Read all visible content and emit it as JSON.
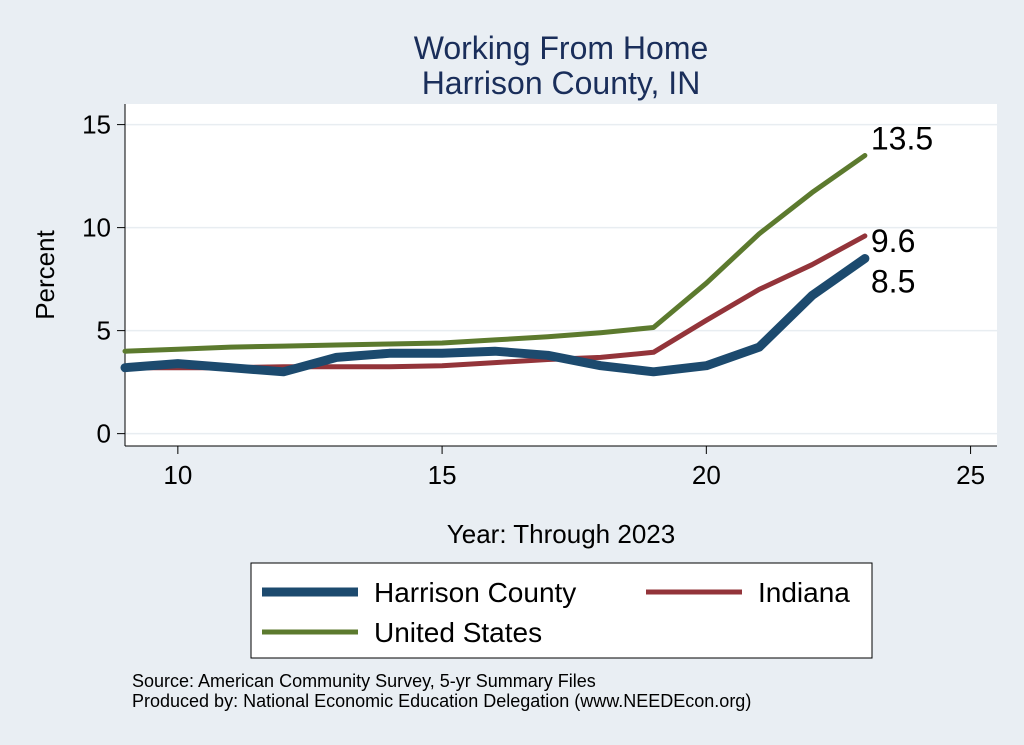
{
  "chart_data": {
    "type": "line",
    "title": "Working From Home",
    "subtitle": "Harrison County, IN",
    "xlabel": "Year: Through 2023",
    "ylabel": "Percent",
    "xlim": [
      9,
      25.5
    ],
    "ylim": [
      -0.6,
      16
    ],
    "xticks": [
      10,
      15,
      20,
      25
    ],
    "yticks": [
      0,
      5,
      10,
      15
    ],
    "grid": true,
    "legend_position": "bottom",
    "x": [
      9,
      10,
      11,
      12,
      13,
      14,
      15,
      16,
      17,
      18,
      19,
      20,
      21,
      22,
      23
    ],
    "series": [
      {
        "name": "Harrison County",
        "color": "#1c4a6e",
        "values": [
          3.2,
          3.4,
          3.2,
          3.0,
          3.7,
          3.9,
          3.9,
          4.0,
          3.8,
          3.3,
          3.0,
          3.3,
          4.2,
          6.7,
          8.5
        ],
        "end_label": "8.5"
      },
      {
        "name": "Indiana",
        "color": "#93343a",
        "values": [
          3.2,
          3.2,
          3.2,
          3.25,
          3.25,
          3.25,
          3.3,
          3.45,
          3.6,
          3.7,
          3.95,
          5.5,
          7.0,
          8.2,
          9.6
        ],
        "end_label": "9.6"
      },
      {
        "name": "United States",
        "color": "#5c7a2e",
        "values": [
          4.0,
          4.1,
          4.2,
          4.25,
          4.3,
          4.35,
          4.4,
          4.55,
          4.7,
          4.9,
          5.15,
          7.3,
          9.7,
          11.7,
          13.5
        ],
        "end_label": "13.5"
      }
    ]
  },
  "notes": {
    "source": "Source: American Community Survey, 5-yr Summary Files",
    "produced_by": "Produced by: National Economic Education Delegation (www.NEEDEcon.org)"
  }
}
